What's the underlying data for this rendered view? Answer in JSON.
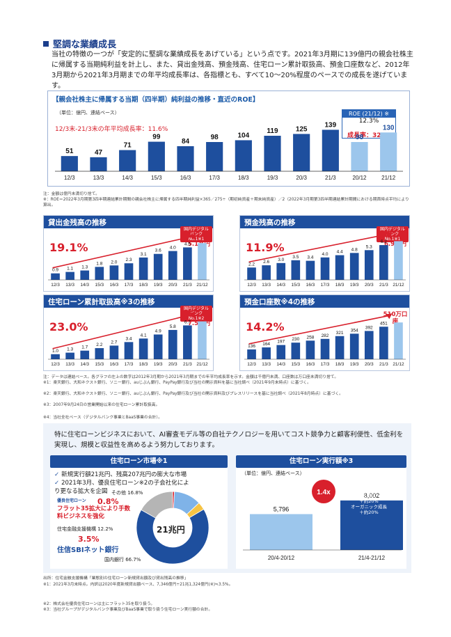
{
  "section": {
    "title": "堅調な業績成長",
    "intro": "当社の特徴の一つが「安定的に堅調な業績成長をあげている」という点です。2021年3月期に139億円の親会社株主に帰属する当期純利益を計上し、また、貸出金残高、預金残高、住宅ローン累計取扱高、預金口座数など、2012年3月期から2021年3月期までの年平均成長率は、各指標とも、すべて10～20%程度のペースでの成長を遂げています。"
  },
  "net_income": {
    "title": "【親会社株主に帰属する当期（四半期）純利益の推移・直近のROE】",
    "unit": "（単位：億円、連結ベース）",
    "growth": "12/3末-21/3末の年平均成長率：11.6%",
    "roe_label": "ROE (21/12) ※",
    "roe_value": "12.3%",
    "recent_growth": "成長率：32.7%",
    "notes": [
      "注：金額は億円未満切り捨て。",
      "※：ROE＝2022年3月期第3四半期連結累計期間の親会社株主に帰属する四半期純利益×365／275÷（期初純資産＋期末純資産）／2（2022年3月期第3四半期連結累計期間における期首時点平均により算出。"
    ]
  },
  "chart_data": [
    {
      "type": "bar",
      "title": "【親会社株主に帰属する当期（四半期）純利益の推移・直近のROE】",
      "categories": [
        "12/3",
        "13/3",
        "14/3",
        "15/3",
        "16/3",
        "17/3",
        "18/3",
        "19/3",
        "20/3",
        "21/3",
        "20/12",
        "21/12"
      ],
      "values": [
        51,
        47,
        71,
        99,
        84,
        98,
        104,
        119,
        125,
        139,
        98,
        130
      ]
    },
    {
      "type": "bar",
      "title": "貸出金残高の推移",
      "categories": [
        "12/3",
        "13/3",
        "14/3",
        "15/3",
        "16/3",
        "17/3",
        "18/3",
        "19/3",
        "20/3",
        "21/3",
        "21/12"
      ],
      "values": [
        0.9,
        1.1,
        1.3,
        1.8,
        2.0,
        2.3,
        3.1,
        3.6,
        4.0,
        4.5,
        5.1
      ]
    },
    {
      "type": "bar",
      "title": "預金残高の推移",
      "categories": [
        "12/3",
        "13/3",
        "14/3",
        "15/3",
        "16/3",
        "17/3",
        "18/3",
        "19/3",
        "20/3",
        "21/3",
        "21/12"
      ],
      "values": [
        2.2,
        2.6,
        3.0,
        3.5,
        3.4,
        4.0,
        4.4,
        4.8,
        5.3,
        6.2,
        6.9
      ]
    },
    {
      "type": "bar",
      "title": "住宅ローン累計取扱高※3の推移",
      "categories": [
        "12/3",
        "13/3",
        "14/3",
        "15/3",
        "16/3",
        "17/3",
        "18/3",
        "19/3",
        "20/3",
        "21/3",
        "21/12"
      ],
      "values": [
        1.0,
        1.3,
        1.7,
        2.2,
        2.7,
        3.4,
        4.1,
        4.9,
        5.8,
        6.7,
        7.5
      ]
    },
    {
      "type": "bar",
      "title": "預金口座数※4の推移",
      "categories": [
        "12/3",
        "13/3",
        "14/3",
        "15/3",
        "16/3",
        "17/3",
        "18/3",
        "19/3",
        "20/3",
        "21/3",
        "21/12"
      ],
      "values": [
        136,
        164,
        197,
        230,
        258,
        282,
        321,
        354,
        392,
        451,
        510
      ]
    }
  ],
  "panels": [
    {
      "title": "貸出金残高の推移",
      "growth": "19.1%",
      "badge": "国内デジタルバンク No.1※1",
      "last": "5.1兆円"
    },
    {
      "title": "預金残高の推移",
      "growth": "11.9%",
      "badge": "国内デジタルバンク No.1※1",
      "last": "6.9兆円"
    },
    {
      "title": "住宅ローン累計取扱高※3の推移",
      "growth": "23.0%",
      "badge": "国内デジタルバンク No.1※2",
      "last": "7.5兆円"
    },
    {
      "title": "預金口座数※4の推移",
      "growth": "14.2%",
      "badge": "",
      "last": "510万口座"
    }
  ],
  "mid_notes": [
    "注：データは連結ベース。各グラフの左上の数字は2012年3月期から2021年3月期までの年平均成長率を示す。金額は千億円未満、口座数は万口座未満切り捨て。",
    "※1：楽天銀行、大和ネクスト銀行、ソニー銀行、auじぶん銀行、PayPay銀行及び当社の開示資料を基に当社調べ（2021年9月末時点）に基づく。",
    "※2：楽天銀行、大和ネクスト銀行、ソニー銀行、auじぶん銀行、PayPay銀行及び当社の開示資料及びプレスリリースを基に当社調べ（2021年8月時点）に基づく。",
    "※3：2007年9月24日の営業開始以来の住宅ローン累計取扱高。",
    "※4：当社全社ベース（デジタルバンク事業とBaaS事業の合計）。"
  ],
  "lead": "特に住宅ローンビジネスにおいて、AI審査モデル等の自社テクノロジーを用いてコスト競争力と顧客利便性、低金利を実現し、規模と収益性を高めるよう努力しております。",
  "market": {
    "title": "住宅ローン市場※1",
    "checks": [
      "新規実行額21兆円、残高207兆円の膨大な市場",
      "2021年3月、優良住宅ローン※2の子会社化により更なる拡大を企図"
    ],
    "center": "21兆円",
    "segments": [
      {
        "label": "その他 16.8%",
        "value": 16.8,
        "color": "#b5b5b5"
      },
      {
        "label": "優良住宅ローン 0.8%",
        "value": 0.8,
        "color": "#d8202c"
      },
      {
        "label": "住宅金融支援機構 12.2%",
        "value": 12.2,
        "color": "#7fb3e8"
      },
      {
        "label": "住信SBIネット銀行 3.5%",
        "value": 3.5,
        "color": "#f6c343"
      },
      {
        "label": "国内銀行 66.7%",
        "value": 66.7,
        "color": "#1e4f9e"
      }
    ],
    "label_other": "その他 16.8%",
    "label_yuryo_pct": "0.8%",
    "label_yuryo_name": "優良住宅ローン",
    "label_flat": "フラット35拡大により手数料ビジネスを強化",
    "label_jhf": "住宅金融支援機構 12.2%",
    "label_sbi_pct": "3.5%",
    "label_sbi_name": "住信SBIネット銀行",
    "label_banks": "国内銀行 66.7%"
  },
  "exec": {
    "title": "住宅ローン実行額※3",
    "unit": "（単位：億円、連結ベース）",
    "prev_value": "5,796",
    "curr_value": "8,002",
    "multiplier": "1.4x",
    "inner_label_1": "優良住宅ローン",
    "inner_label_2": "＋約20%",
    "inner_label_3": "オーガニック成長",
    "inner_label_4": "＋約20%",
    "prev_label": "20/4-20/12",
    "curr_label": "21/4-21/12",
    "values": [
      5796,
      8002
    ]
  },
  "bottom_notes": [
    "出所：住宅金融支援機構「業態別の住宅ローン新規貸出額及び貸出残高の推移」",
    "※1：2021年3月末時点。内訳は2020年度新規貸出額ベース、7,346億円÷21兆1,324億円(※)≒3.5%。",
    "※2：株式会社優良住宅ローンは主にフラット35を取り扱う。",
    "※3：当社グループがデジタルバンク事業及びBaaS事業で取り扱う住宅ローン実行額の合計。"
  ]
}
